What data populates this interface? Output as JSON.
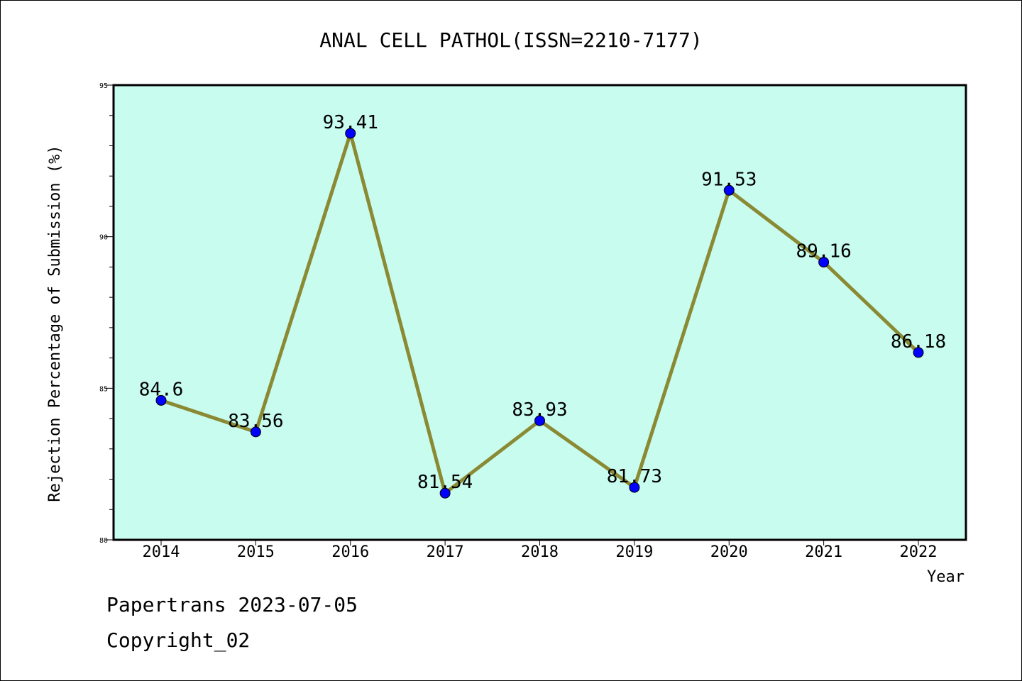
{
  "chart_data": {
    "type": "line",
    "title": "ANAL CELL PATHOL(ISSN=2210-7177)",
    "xlabel": "Year",
    "ylabel": "Rejection Percentage of Submission (%)",
    "ylim": [
      80,
      95
    ],
    "yticks": [
      80,
      85,
      90,
      95
    ],
    "grid": false,
    "categories": [
      "2014",
      "2015",
      "2016",
      "2017",
      "2018",
      "2019",
      "2020",
      "2021",
      "2022"
    ],
    "values": [
      84.6,
      83.56,
      93.41,
      81.54,
      83.93,
      81.73,
      91.53,
      89.16,
      86.18
    ],
    "data_labels": [
      "84.6",
      "83.56",
      "93.41",
      "81.54",
      "83.93",
      "81.73",
      "91.53",
      "89.16",
      "86.18"
    ],
    "colors": {
      "plot_background": "#c8fcee",
      "line": "#8b8a34",
      "marker": "#0000ff"
    }
  },
  "footer": {
    "line1": "Papertrans 2023-07-05",
    "line2": "Copyright_02"
  }
}
